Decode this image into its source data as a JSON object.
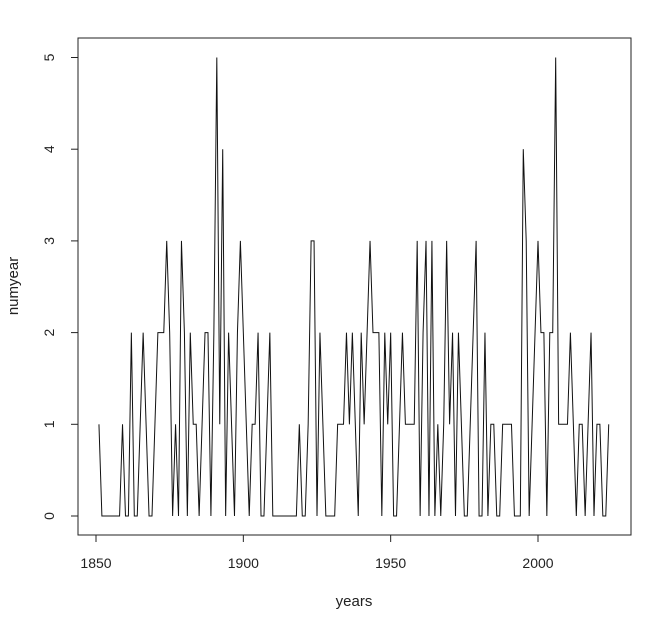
{
  "chart_data": {
    "type": "line",
    "xlabel": "years",
    "ylabel": "numyear",
    "xlim": [
      1850,
      2024
    ],
    "ylim": [
      0,
      5
    ],
    "xticks": [
      1850,
      1900,
      1950,
      2000
    ],
    "yticks": [
      0,
      1,
      2,
      3,
      4,
      5
    ],
    "grid": false,
    "series": [
      {
        "x": [
          1851,
          1852,
          1853,
          1854,
          1855,
          1856,
          1857,
          1858,
          1859,
          1860,
          1861,
          1862,
          1863,
          1864,
          1865,
          1866,
          1867,
          1868,
          1869,
          1870,
          1871,
          1872,
          1873,
          1874,
          1875,
          1876,
          1877,
          1878,
          1879,
          1880,
          1881,
          1882,
          1883,
          1884,
          1885,
          1886,
          1887,
          1888,
          1889,
          1890,
          1891,
          1892,
          1893,
          1894,
          1895,
          1896,
          1897,
          1898,
          1899,
          1900,
          1901,
          1902,
          1903,
          1904,
          1905,
          1906,
          1907,
          1908,
          1909,
          1910,
          1911,
          1912,
          1913,
          1914,
          1915,
          1916,
          1917,
          1918,
          1919,
          1920,
          1921,
          1922,
          1923,
          1924,
          1925,
          1926,
          1927,
          1928,
          1929,
          1930,
          1931,
          1932,
          1933,
          1934,
          1935,
          1936,
          1937,
          1938,
          1939,
          1940,
          1941,
          1942,
          1943,
          1944,
          1945,
          1946,
          1947,
          1948,
          1949,
          1950,
          1951,
          1952,
          1953,
          1954,
          1955,
          1956,
          1957,
          1958,
          1959,
          1960,
          1961,
          1962,
          1963,
          1964,
          1965,
          1966,
          1967,
          1968,
          1969,
          1970,
          1971,
          1972,
          1973,
          1974,
          1975,
          1976,
          1977,
          1978,
          1979,
          1980,
          1981,
          1982,
          1983,
          1984,
          1985,
          1986,
          1987,
          1988,
          1989,
          1990,
          1991,
          1992,
          1993,
          1994,
          1995,
          1996,
          1997,
          1998,
          1999,
          2000,
          2001,
          2002,
          2003,
          2004,
          2005,
          2006,
          2007,
          2008,
          2009,
          2010,
          2011,
          2012,
          2013,
          2014,
          2015,
          2016,
          2017,
          2018,
          2019,
          2020,
          2021,
          2022,
          2023,
          2024
        ],
        "y": [
          1,
          0,
          0,
          0,
          0,
          0,
          0,
          0,
          1,
          0,
          0,
          2,
          0,
          0,
          1,
          2,
          1,
          0,
          0,
          1,
          2,
          2,
          2,
          3,
          2,
          0,
          1,
          0,
          3,
          2,
          0,
          2,
          1,
          1,
          0,
          1,
          2,
          2,
          0,
          2,
          5,
          1,
          4,
          0,
          2,
          1,
          0,
          2,
          3,
          2,
          1,
          0,
          1,
          1,
          2,
          0,
          0,
          1,
          2,
          0,
          0,
          0,
          0,
          0,
          0,
          0,
          0,
          0,
          1,
          0,
          0,
          1,
          3,
          3,
          0,
          2,
          1,
          0,
          0,
          0,
          0,
          1,
          1,
          1,
          2,
          1,
          2,
          1,
          0,
          2,
          1,
          2,
          3,
          2,
          2,
          2,
          0,
          2,
          1,
          2,
          0,
          0,
          1,
          2,
          1,
          1,
          1,
          1,
          3,
          0,
          2,
          3,
          0,
          3,
          0,
          1,
          0,
          1,
          3,
          1,
          2,
          0,
          2,
          1,
          0,
          0,
          1,
          2,
          3,
          0,
          0,
          2,
          0,
          1,
          1,
          0,
          0,
          1,
          1,
          1,
          1,
          0,
          0,
          0,
          4,
          3,
          0,
          1,
          2,
          3,
          2,
          2,
          0,
          2,
          2,
          5,
          1,
          1,
          1,
          1,
          2,
          1,
          0,
          1,
          1,
          0,
          1,
          2,
          0,
          1,
          1,
          0,
          0,
          1
        ]
      }
    ]
  }
}
